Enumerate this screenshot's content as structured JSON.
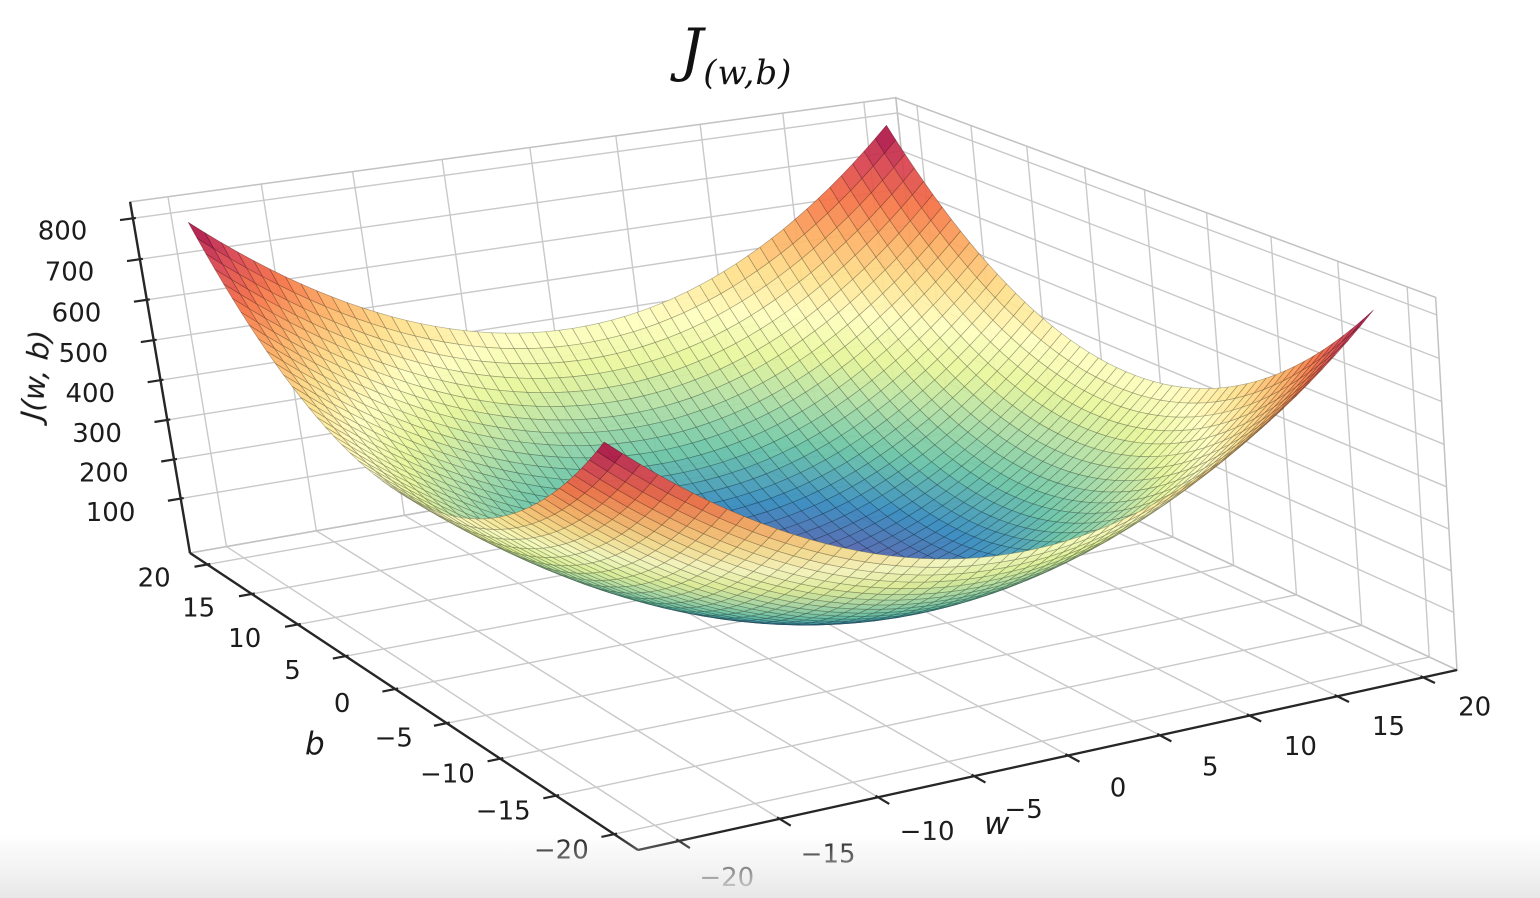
{
  "figure": {
    "background": "#ffffff",
    "title": {
      "main": "J",
      "subscript": "(w,b)"
    }
  },
  "chart_data": {
    "type": "surface",
    "title": "J(w,b)",
    "function": "J(w,b) = w^2 + b^2",
    "x_axis": {
      "label": "w",
      "range": [
        -22,
        22
      ],
      "data_range": [
        -20,
        20
      ],
      "ticks": [
        -20,
        -15,
        -10,
        -5,
        0,
        5,
        10,
        15,
        20
      ]
    },
    "y_axis": {
      "label": "b",
      "range": [
        -22,
        22
      ],
      "data_range": [
        -20,
        20
      ],
      "ticks": [
        -20,
        -15,
        -10,
        -5,
        0,
        5,
        10,
        15,
        20
      ]
    },
    "z_axis": {
      "label": "J(w, b)",
      "range": [
        -40,
        840
      ],
      "value_min": 0,
      "value_max": 800,
      "ticks": [
        100,
        200,
        300,
        400,
        500,
        600,
        700,
        800
      ]
    },
    "surface": {
      "coefficients": {
        "w_squared": 1,
        "b_squared": 1
      },
      "mesh_divisions": 52,
      "face_alpha": 0.93
    },
    "colormap": {
      "name": "spectral_reversed",
      "stops": [
        "#5e4fa2",
        "#3288bd",
        "#66c2a5",
        "#abdda4",
        "#e6f598",
        "#ffffbf",
        "#fee08b",
        "#fdae61",
        "#f46d43",
        "#d53e4f",
        "#9e0142"
      ]
    },
    "grid": true,
    "view": {
      "projection": "perspective",
      "azimuth_deg": -120,
      "elevation_deg": 20,
      "distance": 10,
      "z_aspect": 0.47,
      "anchors": [
        {
          "world": [
            -22,
            -22,
            -40
          ],
          "screen": [
            638,
            850
          ]
        },
        {
          "world": [
            22,
            -22,
            -40
          ],
          "screen": [
            1457,
            670
          ]
        },
        {
          "world": [
            -22,
            22,
            -40
          ],
          "screen": [
            190,
            553
          ]
        }
      ]
    },
    "style": {
      "axis_line": "#262626",
      "grid_line": "#c9c9c9",
      "pane_edge": "#c2c2c2",
      "tick_label_color": "#1c1c1c",
      "tick_font_px": 26
    }
  }
}
